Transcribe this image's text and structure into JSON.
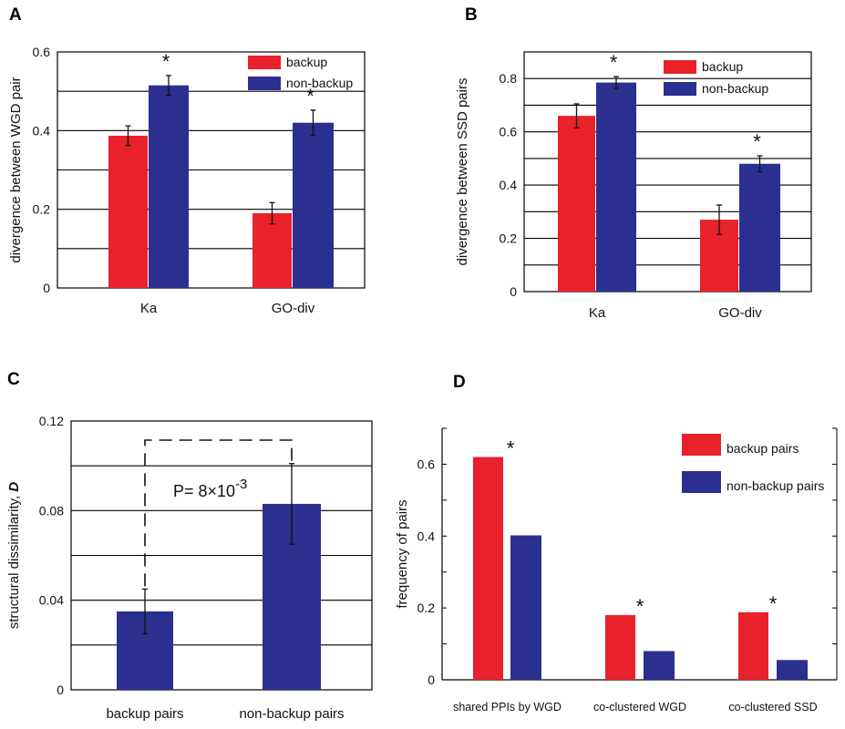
{
  "colors": {
    "backup": "#e8212a",
    "non_backup": "#2b2f8f",
    "grid": "#000000"
  },
  "chart_data": [
    {
      "panel": "A",
      "type": "bar",
      "categories": [
        "Ka",
        "GO-div"
      ],
      "series": [
        {
          "name": "backup",
          "values": [
            0.387,
            0.19
          ],
          "errors": [
            0.025,
            0.027
          ]
        },
        {
          "name": "non-backup",
          "values": [
            0.515,
            0.42
          ],
          "errors": [
            0.025,
            0.032
          ]
        }
      ],
      "significance": [
        "*",
        "*"
      ],
      "ylabel": "divergence between  WGD pair",
      "ylim": [
        0,
        0.6
      ],
      "yticks": [
        0,
        0.2,
        0.4,
        0.6
      ],
      "ytick_labels": [
        "0",
        "0.2",
        "0.4",
        "0.6"
      ],
      "grid_step": 0.1,
      "legend": "top-right"
    },
    {
      "panel": "B",
      "type": "bar",
      "categories": [
        "Ka",
        "GO-div"
      ],
      "series": [
        {
          "name": "backup",
          "values": [
            0.66,
            0.27
          ],
          "errors": [
            0.045,
            0.055
          ]
        },
        {
          "name": "non-backup",
          "values": [
            0.785,
            0.48
          ],
          "errors": [
            0.022,
            0.03
          ]
        }
      ],
      "significance": [
        "*",
        "*"
      ],
      "ylabel": "divergence between SSD pairs",
      "ylim": [
        0,
        0.9
      ],
      "yticks": [
        0,
        0.2,
        0.4,
        0.6,
        0.8
      ],
      "ytick_labels": [
        "0",
        "0.2",
        "0.4",
        "0.6",
        "0.8"
      ],
      "grid_step": 0.1,
      "legend": "top-right"
    },
    {
      "panel": "C",
      "type": "bar",
      "categories": [
        "backup pairs",
        "non-backup pairs"
      ],
      "series": [
        {
          "values": [
            0.035,
            0.083
          ],
          "errors": [
            0.01,
            0.018
          ]
        }
      ],
      "annotation": {
        "p_prefix": "P= 8×10",
        "p_exponent": "-3"
      },
      "ylabel": "structural dissimilarity,",
      "ylabel_symbol": "D",
      "ylim": [
        0,
        0.12
      ],
      "yticks": [
        0,
        0.04,
        0.08,
        0.12
      ],
      "ytick_labels": [
        "0",
        "0.04",
        "0.08",
        "0.12"
      ],
      "grid_step": 0.02
    },
    {
      "panel": "D",
      "type": "bar",
      "categories": [
        "shared PPIs by WGD",
        "co-clustered WGD",
        "co-clustered SSD"
      ],
      "series": [
        {
          "name": "backup pairs",
          "values": [
            0.62,
            0.18,
            0.188
          ]
        },
        {
          "name": "non-backup pairs",
          "values": [
            0.402,
            0.08,
            0.055
          ]
        }
      ],
      "significance": [
        "*",
        "*",
        "*"
      ],
      "ylabel": "frequency of pairs",
      "ylim": [
        0,
        0.7
      ],
      "yticks": [
        0,
        0.2,
        0.4,
        0.6
      ],
      "ytick_labels": [
        "0",
        "0.2",
        "0.4",
        "0.6"
      ],
      "minor_step": 0.1,
      "legend": "top-right"
    }
  ]
}
